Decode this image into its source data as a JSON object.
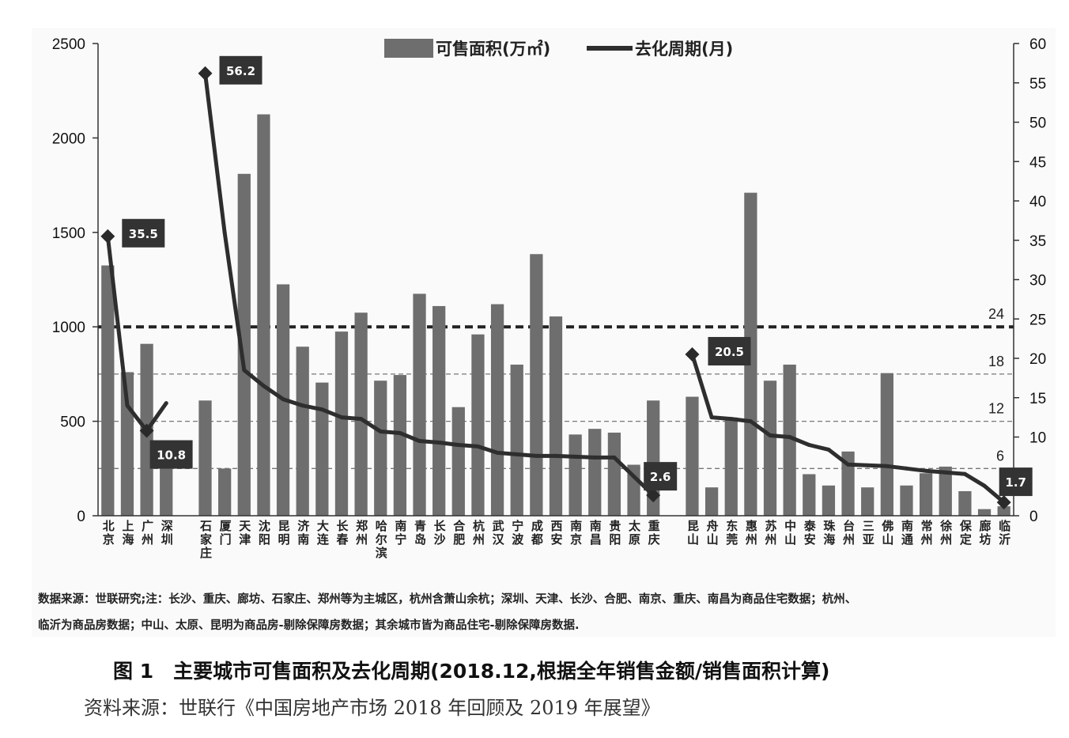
{
  "chart_data": {
    "type": "bar",
    "categories": [
      "北京",
      "上海",
      "广州",
      "深圳",
      "",
      "石家庄",
      "厦门",
      "天津",
      "沈阳",
      "昆明",
      "济南",
      "大连",
      "长春",
      "郑州",
      "哈尔滨",
      "南宁",
      "青岛",
      "长沙",
      "合肥",
      "杭州",
      "武汉",
      "宁波",
      "成都",
      "西安",
      "南京",
      "南昌",
      "贵阳",
      "太原",
      "重庆",
      "",
      "昆山",
      "舟山",
      "东莞",
      "惠州",
      "苏州",
      "中山",
      "泰安",
      "珠海",
      "台州",
      "三亚",
      "佛山",
      "南通",
      "常州",
      "徐州",
      "保定",
      "廊坊",
      "临沂"
    ],
    "series": [
      {
        "name": "可售面积(万㎡)",
        "axis": "left",
        "values": [
          1325,
          760,
          910,
          290,
          null,
          610,
          250,
          1810,
          2125,
          1225,
          895,
          705,
          975,
          1075,
          715,
          745,
          1175,
          1110,
          575,
          960,
          1120,
          800,
          1385,
          1055,
          430,
          460,
          440,
          270,
          610,
          null,
          630,
          150,
          520,
          1710,
          715,
          800,
          220,
          160,
          340,
          150,
          755,
          160,
          225,
          260,
          130,
          35,
          50
        ]
      },
      {
        "name": "去化周期(月)",
        "axis": "right",
        "type": "line",
        "segments": [
          {
            "start": 0,
            "values": [
              35.5,
              14,
              10.8,
              14.3
            ]
          },
          {
            "start": 5,
            "values": [
              56.2,
              36,
              18.5,
              16.5,
              14.8,
              14,
              13.5,
              12.5,
              12.3,
              10.7,
              10.5,
              9.5,
              9.3,
              9.0,
              8.8,
              8.0,
              7.8,
              7.6,
              7.6,
              7.5,
              7.4,
              7.4,
              5.0,
              2.6
            ]
          },
          {
            "start": 30,
            "values": [
              20.5,
              12.5,
              12.3,
              12.0,
              10.2,
              10.0,
              9.0,
              8.4,
              6.5,
              6.4,
              6.3,
              6.0,
              5.7,
              5.5,
              5.3,
              3.8,
              1.7
            ]
          }
        ]
      }
    ],
    "callouts": [
      {
        "index": 0,
        "value": 35.5,
        "label": "35.5"
      },
      {
        "index": 2,
        "value": 10.8,
        "label": "10.8"
      },
      {
        "index": 5,
        "value": 56.2,
        "label": "56.2"
      },
      {
        "index": 28,
        "value": 2.6,
        "label": "2.6"
      },
      {
        "index": 30,
        "value": 20.5,
        "label": "20.5"
      },
      {
        "index": 46,
        "value": 1.7,
        "label": "1.7"
      }
    ],
    "reference_lines": [
      {
        "value": 24,
        "label": "24",
        "style": "bold-dashed"
      },
      {
        "value": 18,
        "label": "18",
        "style": "dashed"
      },
      {
        "value": 12,
        "label": "12",
        "style": "dashed"
      },
      {
        "value": 6,
        "label": "6",
        "style": "dashed"
      }
    ],
    "ylim_left": [
      0,
      2500
    ],
    "yticks_left": [
      0,
      500,
      1000,
      1500,
      2000,
      2500
    ],
    "ylim_right": [
      0,
      60
    ],
    "yticks_right": [
      0,
      10,
      15,
      20,
      25,
      30,
      35,
      40,
      45,
      50,
      55,
      60
    ],
    "legend_position": "top-center",
    "grid": false
  },
  "note": {
    "line1": "数据来源：世联研究;注：长沙、重庆、廊坊、石家庄、郑州等为主城区，杭州含萧山余杭；深圳、天津、长沙、合肥、南京、重庆、南昌为商品住宅数据；杭州、",
    "line2": "临沂为商品房数据；中山、太原、昆明为商品房-剔除保障房数据；其余城市皆为商品住宅-剔除保障房数据."
  },
  "caption": "图 1　主要城市可售面积及去化周期(2018.12,根据全年销售金额/销售面积计算)",
  "source": "资料来源：世联行《中国房地产市场 2018 年回顾及 2019 年展望》",
  "colors": {
    "bar": "#6e6e6e",
    "line": "#2e2e2e",
    "callout_bg": "#333333"
  }
}
